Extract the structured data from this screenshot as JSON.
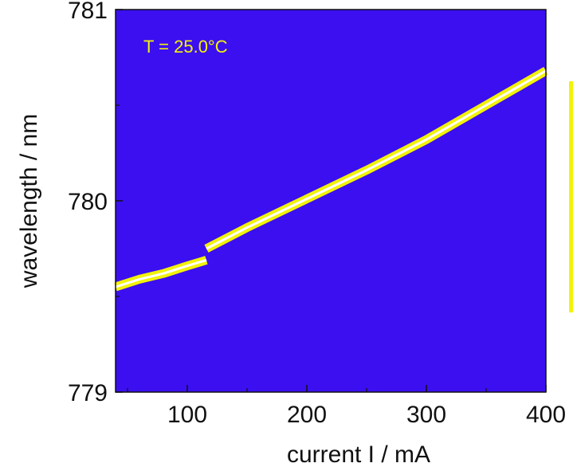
{
  "chart_data": {
    "type": "heatmap",
    "title": "",
    "xlabel": "current I / mA",
    "ylabel": "wavelength / nm",
    "xlim": [
      40,
      400
    ],
    "ylim": [
      779,
      781
    ],
    "x_ticks": [
      100,
      200,
      300,
      400
    ],
    "y_ticks": [
      779,
      780,
      781
    ],
    "annotation": "T = 25.0°C",
    "colors": {
      "background": "#3b0ff0",
      "line_core": "#ffffff",
      "line_glow": "#f2f20a",
      "colorbar": "#f2f20a"
    },
    "segments": [
      {
        "x": [
          40,
          60,
          80,
          100,
          116
        ],
        "y": [
          779.55,
          779.59,
          779.62,
          779.66,
          779.69
        ]
      },
      {
        "x": [
          116,
          150,
          200,
          250,
          300,
          350,
          400
        ],
        "y": [
          779.75,
          779.86,
          780.01,
          780.16,
          780.32,
          780.5,
          780.68
        ]
      }
    ]
  }
}
